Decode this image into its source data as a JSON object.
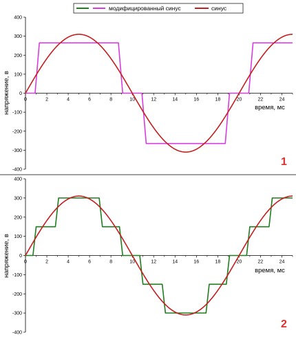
{
  "legend": [
    {
      "label": "",
      "color": "#1e7d1e"
    },
    {
      "label": "модифицированный синус",
      "color": "#d63ce0"
    },
    {
      "label": "синус",
      "color": "#c41e1e"
    }
  ],
  "chart_data": [
    {
      "type": "line",
      "panel_label": "1",
      "xlabel": "время, мс",
      "ylabel": "напряжение, в",
      "xlim": [
        0,
        25
      ],
      "ylim": [
        -400,
        400
      ],
      "xticks": [
        0,
        2,
        4,
        6,
        8,
        10,
        12,
        14,
        16,
        18,
        20,
        22,
        24
      ],
      "yticks": [
        400,
        300,
        200,
        100,
        0,
        -100,
        -200,
        -300,
        -400
      ],
      "grid": false,
      "series": [
        {
          "name": "модифицированный синус",
          "color": "#d63ce0",
          "x": [
            0,
            0.9,
            1.3,
            8.7,
            9.1,
            10.9,
            11.3,
            18.7,
            19.1,
            20.9,
            21.3,
            25
          ],
          "y": [
            0,
            0,
            265,
            265,
            0,
            0,
            -265,
            -265,
            0,
            0,
            265,
            265
          ]
        },
        {
          "name": "синус",
          "color": "#c41e1e",
          "function": "sine",
          "amplitude": 310,
          "period_ms": 20
        }
      ]
    },
    {
      "type": "line",
      "panel_label": "2",
      "xlabel": "время, мс",
      "ylabel": "напряжение, в",
      "xlim": [
        0,
        25
      ],
      "ylim": [
        -400,
        400
      ],
      "xticks": [
        0,
        2,
        4,
        6,
        8,
        10,
        12,
        14,
        16,
        18,
        20,
        22,
        24
      ],
      "yticks": [
        400,
        300,
        200,
        100,
        0,
        -100,
        -200,
        -300,
        -400
      ],
      "grid": false,
      "series": [
        {
          "name": "",
          "color": "#1e7d1e",
          "x": [
            0,
            0.4,
            0.7,
            1.0,
            1.2,
            2.8,
            3.1,
            6.9,
            7.2,
            8.8,
            9.1,
            10.4,
            10.7,
            11.0,
            11.2,
            12.8,
            13.1,
            16.9,
            17.2,
            18.8,
            19.1,
            20.4,
            20.7,
            21.0,
            21.2,
            22.8,
            23.1,
            25
          ],
          "y": [
            0,
            0,
            0,
            150,
            150,
            150,
            300,
            300,
            150,
            150,
            0,
            0,
            0,
            -150,
            -150,
            -150,
            -300,
            -300,
            -150,
            -150,
            0,
            0,
            0,
            150,
            150,
            150,
            300,
            300
          ]
        },
        {
          "name": "синус",
          "color": "#c41e1e",
          "function": "sine",
          "amplitude": 310,
          "period_ms": 20
        }
      ]
    }
  ]
}
